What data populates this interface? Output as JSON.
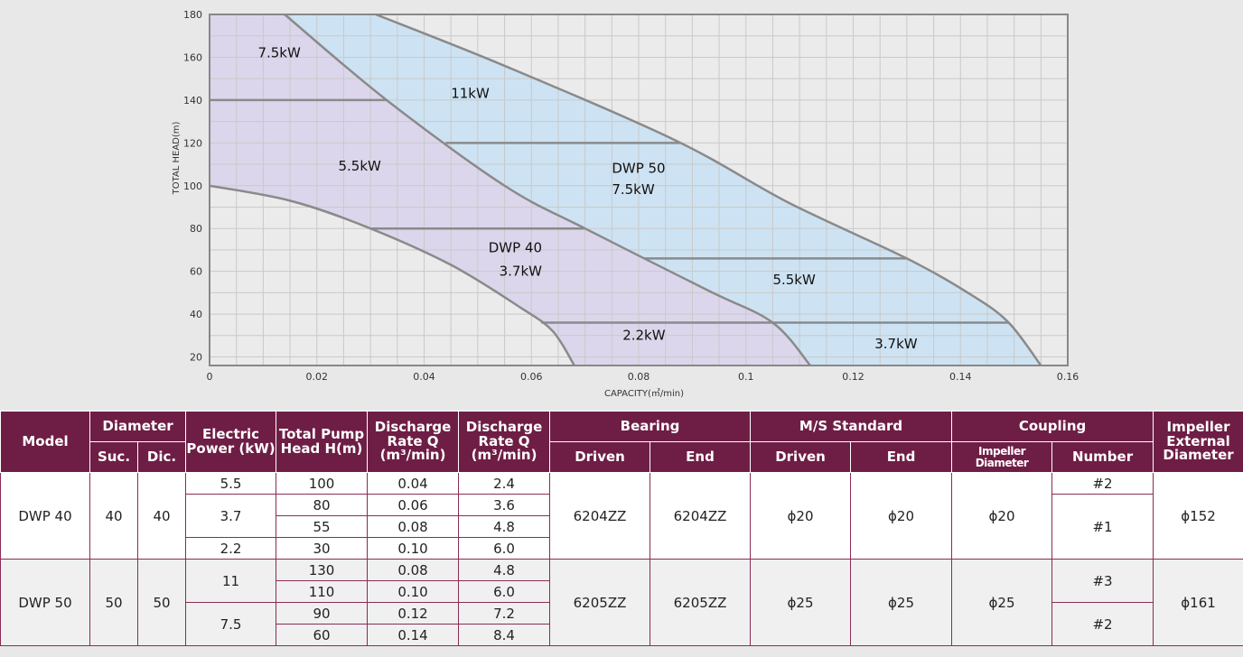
{
  "chart_data": {
    "type": "area",
    "xlabel": "CAPACITY(㎥/min)",
    "ylabel": "TOTAL HEAD(m)",
    "xlim": [
      0,
      0.16
    ],
    "ylim": [
      16,
      180
    ],
    "x_ticks": [
      "0",
      "0.02",
      "0.04",
      "0.06",
      "0.08",
      "0.1",
      "0.12",
      "0.14",
      "0.16"
    ],
    "x_tick_values": [
      0,
      0.02,
      0.04,
      0.06,
      0.08,
      0.1,
      0.12,
      0.14,
      0.16
    ],
    "y_ticks": [
      "20",
      "40",
      "60",
      "80",
      "100",
      "120",
      "140",
      "160",
      "180"
    ],
    "y_tick_values": [
      20,
      40,
      60,
      80,
      100,
      120,
      140,
      160,
      180
    ],
    "grid": true,
    "regions": [
      {
        "model": "DWP 40",
        "color": "#dcd6ec",
        "outer_curve": [
          [
            0.014,
            180
          ],
          [
            0.033,
            140
          ],
          [
            0.055,
            100
          ],
          [
            0.07,
            80
          ],
          [
            0.093,
            51
          ],
          [
            0.105,
            36
          ],
          [
            0.112,
            16
          ]
        ],
        "inner_curve": [
          [
            0,
            100
          ],
          [
            0.015,
            93
          ],
          [
            0.029,
            81
          ],
          [
            0.045,
            63
          ],
          [
            0.058,
            43
          ],
          [
            0.064,
            32
          ],
          [
            0.068,
            16
          ]
        ],
        "divider_heads": [
          140,
          80,
          36
        ],
        "labels": [
          {
            "text": "7.5kW",
            "x": 0.009,
            "y": 160
          },
          {
            "text": "5.5kW",
            "x": 0.024,
            "y": 107
          },
          {
            "text": "DWP 40",
            "x": 0.052,
            "y": 69
          },
          {
            "text": "3.7kW",
            "x": 0.054,
            "y": 58
          },
          {
            "text": "2.2kW",
            "x": 0.077,
            "y": 28
          }
        ]
      },
      {
        "model": "DWP 50",
        "color": "#cde3f3",
        "outer_curve": [
          [
            0.031,
            180
          ],
          [
            0.055,
            156
          ],
          [
            0.087,
            121
          ],
          [
            0.108,
            92
          ],
          [
            0.13,
            66
          ],
          [
            0.142,
            49
          ],
          [
            0.149,
            36
          ],
          [
            0.155,
            16
          ]
        ],
        "inner_curve": [
          [
            0.014,
            180
          ],
          [
            0.033,
            140
          ],
          [
            0.055,
            100
          ],
          [
            0.07,
            80
          ],
          [
            0.093,
            51
          ],
          [
            0.105,
            36
          ],
          [
            0.112,
            16
          ]
        ],
        "divider_heads": [
          120,
          66,
          36
        ],
        "labels": [
          {
            "text": "11kW",
            "x": 0.045,
            "y": 141
          },
          {
            "text": "DWP 50",
            "x": 0.075,
            "y": 106
          },
          {
            "text": "7.5kW",
            "x": 0.075,
            "y": 96
          },
          {
            "text": "5.5kW",
            "x": 0.105,
            "y": 54
          },
          {
            "text": "3.7kW",
            "x": 0.124,
            "y": 24
          }
        ]
      }
    ]
  },
  "table": {
    "header": {
      "model": "Model",
      "diameter": "Diameter",
      "suc": "Suc.",
      "dic": "Dic.",
      "electric_power": "Electric Power (kW)",
      "total_pump_head": "Total Pump Head H(m)",
      "discharge_q1": "Discharge Rate Q",
      "discharge_q1_unit": "(m³/min)",
      "discharge_q2": "Discharge Rate Q",
      "discharge_q2_unit": "(m³/min)",
      "bearing": "Bearing",
      "bearing_driven": "Driven",
      "bearing_end": "End",
      "ms_standard": "M/S Standard",
      "ms_driven": "Driven",
      "ms_end": "End",
      "coupling": "Coupling",
      "coupling_impeller_diameter": "Impeller Diameter",
      "coupling_number": "Number",
      "impeller_external_diameter": "Impeller External Diameter"
    },
    "models": [
      {
        "model": "DWP 40",
        "suc": "40",
        "dic": "40",
        "bearing_driven": "6204ZZ",
        "bearing_end": "6204ZZ",
        "ms_driven": "ϕ20",
        "ms_end": "ϕ20",
        "coupling_impeller_diameter": "ϕ20",
        "coupling_numbers": [
          "#2",
          "#1"
        ],
        "impeller_external_diameter": "ϕ152",
        "power": [
          "5.5",
          "3.7",
          "2.2"
        ],
        "rows": [
          {
            "head": "100",
            "q1": "0.04",
            "q2": "2.4"
          },
          {
            "head": "80",
            "q1": "0.06",
            "q2": "3.6"
          },
          {
            "head": "55",
            "q1": "0.08",
            "q2": "4.8"
          },
          {
            "head": "30",
            "q1": "0.10",
            "q2": "6.0"
          }
        ]
      },
      {
        "model": "DWP 50",
        "suc": "50",
        "dic": "50",
        "bearing_driven": "6205ZZ",
        "bearing_end": "6205ZZ",
        "ms_driven": "ϕ25",
        "ms_end": "ϕ25",
        "coupling_impeller_diameter": "ϕ25",
        "coupling_numbers": [
          "#3",
          "#2"
        ],
        "impeller_external_diameter": "ϕ161",
        "power": [
          "11",
          "7.5"
        ],
        "rows": [
          {
            "head": "130",
            "q1": "0.08",
            "q2": "4.8"
          },
          {
            "head": "110",
            "q1": "0.10",
            "q2": "6.0"
          },
          {
            "head": "90",
            "q1": "0.12",
            "q2": "7.2"
          },
          {
            "head": "60",
            "q1": "0.14",
            "q2": "8.4"
          }
        ]
      }
    ]
  }
}
